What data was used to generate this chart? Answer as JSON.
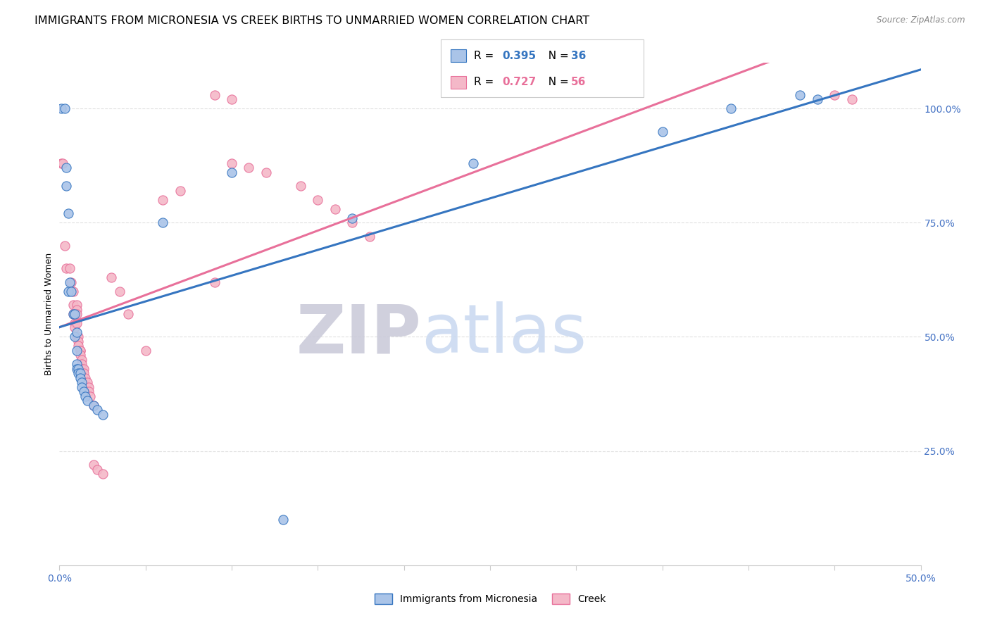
{
  "title": "IMMIGRANTS FROM MICRONESIA VS CREEK BIRTHS TO UNMARRIED WOMEN CORRELATION CHART",
  "source": "Source: ZipAtlas.com",
  "ylabel": "Births to Unmarried Women",
  "xlim": [
    0.0,
    0.5
  ],
  "ylim": [
    0.0,
    1.1
  ],
  "yticks": [
    0.25,
    0.5,
    0.75,
    1.0
  ],
  "ytick_labels": [
    "25.0%",
    "50.0%",
    "75.0%",
    "100.0%"
  ],
  "xticks": [
    0.0,
    0.05,
    0.1,
    0.15,
    0.2,
    0.25,
    0.3,
    0.35,
    0.4,
    0.45,
    0.5
  ],
  "xtick_labels": [
    "0.0%",
    "",
    "",
    "",
    "",
    "",
    "",
    "",
    "",
    "",
    "50.0%"
  ],
  "blue_scatter": [
    [
      0.001,
      1.0
    ],
    [
      0.003,
      1.0
    ],
    [
      0.004,
      0.87
    ],
    [
      0.004,
      0.83
    ],
    [
      0.005,
      0.6
    ],
    [
      0.005,
      0.77
    ],
    [
      0.006,
      0.62
    ],
    [
      0.007,
      0.6
    ],
    [
      0.008,
      0.55
    ],
    [
      0.009,
      0.55
    ],
    [
      0.009,
      0.5
    ],
    [
      0.01,
      0.51
    ],
    [
      0.01,
      0.47
    ],
    [
      0.01,
      0.44
    ],
    [
      0.01,
      0.43
    ],
    [
      0.011,
      0.43
    ],
    [
      0.011,
      0.42
    ],
    [
      0.012,
      0.42
    ],
    [
      0.012,
      0.41
    ],
    [
      0.013,
      0.4
    ],
    [
      0.013,
      0.39
    ],
    [
      0.014,
      0.38
    ],
    [
      0.015,
      0.37
    ],
    [
      0.016,
      0.36
    ],
    [
      0.02,
      0.35
    ],
    [
      0.022,
      0.34
    ],
    [
      0.025,
      0.33
    ],
    [
      0.06,
      0.75
    ],
    [
      0.1,
      0.86
    ],
    [
      0.13,
      0.1
    ],
    [
      0.17,
      0.76
    ],
    [
      0.24,
      0.88
    ],
    [
      0.35,
      0.95
    ],
    [
      0.39,
      1.0
    ],
    [
      0.43,
      1.03
    ],
    [
      0.44,
      1.02
    ]
  ],
  "pink_scatter": [
    [
      0.001,
      0.88
    ],
    [
      0.002,
      0.88
    ],
    [
      0.003,
      0.7
    ],
    [
      0.004,
      0.65
    ],
    [
      0.006,
      0.65
    ],
    [
      0.007,
      0.62
    ],
    [
      0.008,
      0.6
    ],
    [
      0.008,
      0.57
    ],
    [
      0.008,
      0.55
    ],
    [
      0.009,
      0.55
    ],
    [
      0.009,
      0.53
    ],
    [
      0.009,
      0.52
    ],
    [
      0.01,
      0.57
    ],
    [
      0.01,
      0.56
    ],
    [
      0.01,
      0.55
    ],
    [
      0.01,
      0.53
    ],
    [
      0.01,
      0.5
    ],
    [
      0.011,
      0.5
    ],
    [
      0.011,
      0.49
    ],
    [
      0.011,
      0.48
    ],
    [
      0.012,
      0.47
    ],
    [
      0.012,
      0.47
    ],
    [
      0.012,
      0.46
    ],
    [
      0.013,
      0.45
    ],
    [
      0.013,
      0.44
    ],
    [
      0.013,
      0.43
    ],
    [
      0.014,
      0.43
    ],
    [
      0.014,
      0.42
    ],
    [
      0.015,
      0.41
    ],
    [
      0.016,
      0.4
    ],
    [
      0.017,
      0.39
    ],
    [
      0.017,
      0.38
    ],
    [
      0.018,
      0.37
    ],
    [
      0.02,
      0.35
    ],
    [
      0.02,
      0.22
    ],
    [
      0.022,
      0.21
    ],
    [
      0.025,
      0.2
    ],
    [
      0.03,
      0.63
    ],
    [
      0.035,
      0.6
    ],
    [
      0.04,
      0.55
    ],
    [
      0.05,
      0.47
    ],
    [
      0.06,
      0.8
    ],
    [
      0.07,
      0.82
    ],
    [
      0.09,
      0.62
    ],
    [
      0.09,
      1.03
    ],
    [
      0.1,
      1.02
    ],
    [
      0.1,
      0.88
    ],
    [
      0.11,
      0.87
    ],
    [
      0.12,
      0.86
    ],
    [
      0.14,
      0.83
    ],
    [
      0.15,
      0.8
    ],
    [
      0.16,
      0.78
    ],
    [
      0.17,
      0.75
    ],
    [
      0.18,
      0.72
    ],
    [
      0.45,
      1.03
    ],
    [
      0.46,
      1.02
    ]
  ],
  "blue_color": "#aac4e8",
  "pink_color": "#f4b8c8",
  "blue_line_color": "#3575c0",
  "pink_line_color": "#e8709a",
  "watermark_ZIP_color": "#c8c8d8",
  "watermark_atlas_color": "#c8d8f0",
  "grid_color": "#e0e0e0",
  "title_fontsize": 11.5,
  "axis_label_fontsize": 9,
  "tick_fontsize": 10,
  "right_tick_color": "#4472c4",
  "bottom_tick_color": "#4472c4"
}
